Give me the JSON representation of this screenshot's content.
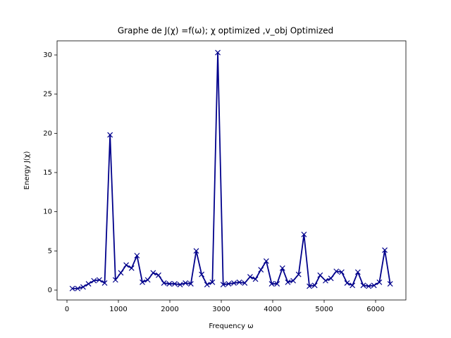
{
  "chart_data": {
    "type": "line",
    "title": "Graphe de J(χ) =f(ω); χ optimized ,v_obj Optimized",
    "x_label": "Frequency ω",
    "y_label": "Energy J(χ)",
    "color": "#00008b",
    "marker": "x",
    "x": [
      104.7,
      209.4,
      314.2,
      418.9,
      523.6,
      628.3,
      733.0,
      837.8,
      942.5,
      1047.2,
      1151.9,
      1256.6,
      1361.4,
      1466.1,
      1570.8,
      1675.5,
      1780.2,
      1885.0,
      1989.7,
      2094.4,
      2199.1,
      2303.8,
      2408.6,
      2513.3,
      2618.0,
      2722.7,
      2827.4,
      2932.2,
      3036.9,
      3141.6,
      3246.3,
      3351.0,
      3455.8,
      3560.5,
      3665.2,
      3769.9,
      3874.6,
      3979.4,
      4084.1,
      4188.8,
      4293.5,
      4398.2,
      4503.0,
      4607.7,
      4712.4,
      4817.1,
      4921.8,
      5026.5,
      5131.3,
      5236.0,
      5340.7,
      5445.4,
      5550.1,
      5654.9,
      5759.6,
      5864.3,
      5969.0,
      6073.7,
      6178.5,
      6283.2
    ],
    "values": [
      0.2,
      0.2,
      0.4,
      0.8,
      1.2,
      1.3,
      0.9,
      19.8,
      1.3,
      2.2,
      3.2,
      2.8,
      4.4,
      1.0,
      1.3,
      2.2,
      1.9,
      0.9,
      0.8,
      0.8,
      0.7,
      0.9,
      0.8,
      5.0,
      2.0,
      0.7,
      1.0,
      30.3,
      0.7,
      0.8,
      0.9,
      1.0,
      0.9,
      1.7,
      1.4,
      2.6,
      3.7,
      0.8,
      0.8,
      2.8,
      1.0,
      1.2,
      2.0,
      7.1,
      0.5,
      0.6,
      1.9,
      1.2,
      1.5,
      2.4,
      2.3,
      0.9,
      0.6,
      2.3,
      0.6,
      0.5,
      0.6,
      1.0,
      5.1,
      0.8
    ],
    "xlim": [
      -192,
      6589
    ],
    "ylim": [
      -1.26,
      31.8
    ],
    "xticks": [
      0,
      1000,
      2000,
      3000,
      4000,
      5000,
      6000
    ],
    "yticks": [
      0,
      5,
      10,
      15,
      20,
      25,
      30
    ]
  }
}
